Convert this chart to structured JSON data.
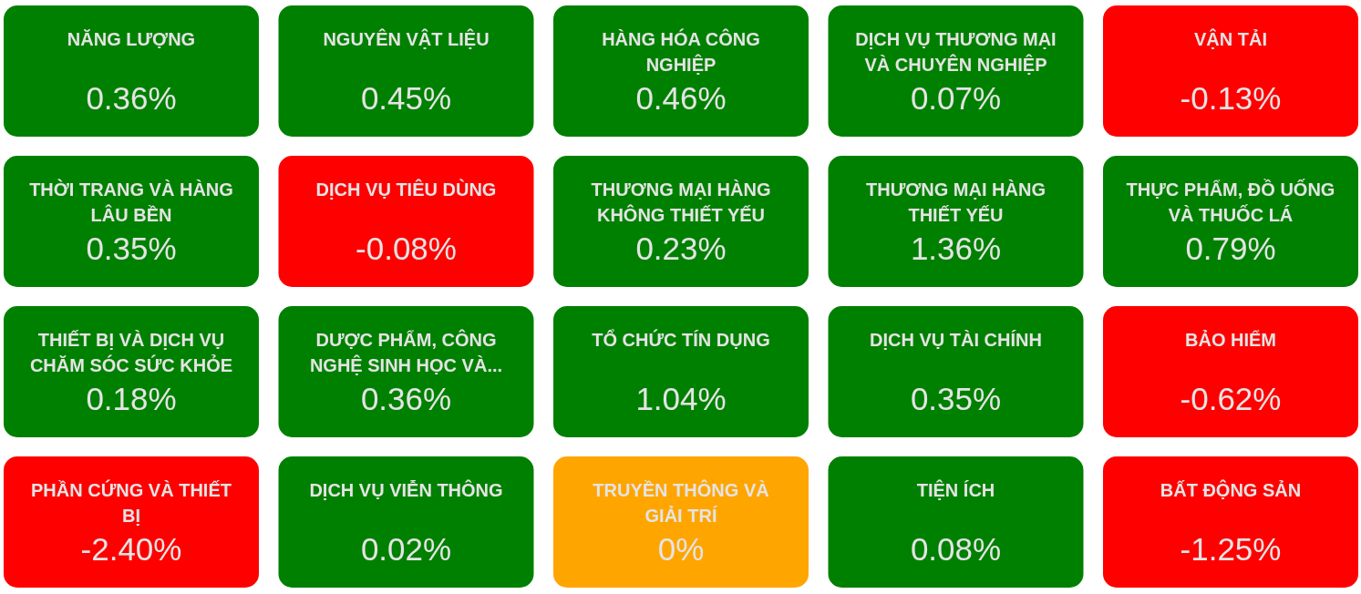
{
  "chart_data": {
    "type": "other",
    "categories": [
      "NĂNG LƯỢNG",
      "NGUYÊN VẬT LIỆU",
      "HÀNG HÓA CÔNG NGHIỆP",
      "DỊCH VỤ THƯƠNG MẠI VÀ CHUYÊN NGHIỆP",
      "VẬN TẢI",
      "THỜI TRANG VÀ HÀNG LÂU BỀN",
      "DỊCH VỤ TIÊU DÙNG",
      "THƯƠNG MẠI HÀNG KHÔNG THIẾT YẾU",
      "THƯƠNG MẠI HÀNG THIẾT YẾU",
      "THỰC PHẨM, ĐỒ UỐNG VÀ THUỐC LÁ",
      "THIẾT BỊ VÀ DỊCH VỤ CHĂM SÓC SỨC KHỎE",
      "DƯỢC PHẨM, CÔNG NGHỆ SINH HỌC VÀ...",
      "TỔ CHỨC TÍN DỤNG",
      "DỊCH VỤ TÀI CHÍNH",
      "BẢO HIỂM",
      "PHẦN CỨNG VÀ THIẾT BỊ",
      "DỊCH VỤ VIỄN THÔNG",
      "TRUYỀN THÔNG VÀ GIẢI TRÍ",
      "TIỆN ÍCH",
      "BẤT ĐỘNG SẢN"
    ],
    "values": [
      0.36,
      0.45,
      0.46,
      0.07,
      -0.13,
      0.35,
      -0.08,
      0.23,
      1.36,
      0.79,
      0.18,
      0.36,
      1.04,
      0.35,
      -0.62,
      -2.4,
      0.02,
      0,
      0.08,
      -1.25
    ],
    "value_labels": [
      "0.36%",
      "0.45%",
      "0.46%",
      "0.07%",
      "-0.13%",
      "0.35%",
      "-0.08%",
      "0.23%",
      "1.36%",
      "0.79%",
      "0.18%",
      "0.36%",
      "1.04%",
      "0.35%",
      "-0.62%",
      "-2.40%",
      "0.02%",
      "0%",
      "0.08%",
      "-1.25%"
    ],
    "colors": [
      "#008000",
      "#008000",
      "#008000",
      "#008000",
      "#ff0000",
      "#008000",
      "#ff0000",
      "#008000",
      "#008000",
      "#008000",
      "#008000",
      "#008000",
      "#008000",
      "#008000",
      "#ff0000",
      "#ff0000",
      "#008000",
      "#ffa500",
      "#008000",
      "#ff0000"
    ]
  }
}
